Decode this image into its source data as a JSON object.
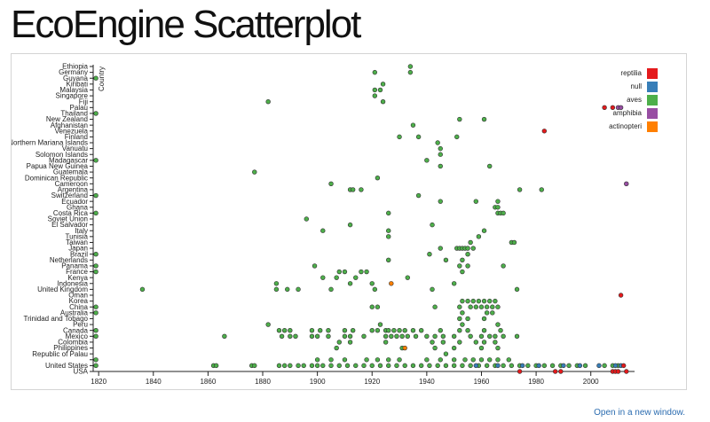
{
  "page": {
    "title": "EcoEngine Scatterplot",
    "open_link": "Open in a new window."
  },
  "chart_data": {
    "type": "scatter",
    "title": "",
    "xlabel": "",
    "ylabel": "Country",
    "xlim": [
      1818,
      2016
    ],
    "xticks": [
      1820,
      1840,
      1860,
      1880,
      1900,
      1920,
      1940,
      1960,
      1980,
      2000
    ],
    "categories": [
      "Ethiopia",
      "Germany",
      "Guyana",
      "Kiribati",
      "Malaysia",
      "Singapore",
      "Fiji",
      "Palau",
      "Thailand",
      "New Zealand",
      "Afghanistan",
      "Venezuela",
      "Finland",
      "Northern Mariana Islands",
      "Vanuatu",
      "Solomon Islands",
      "Madagascar",
      "Papua New Guinea",
      "Guatemala",
      "Dominican Republic",
      "Cameroon",
      "Argentina",
      "Switzerland",
      "Ecuador",
      "Ghana",
      "Costa Rica",
      "Soviet Union",
      "El Salvador",
      "Italy",
      "Tunisia",
      "Taiwan",
      "Japan",
      "Brazil",
      "Netherlands",
      "Panama",
      "France",
      "Kenya",
      "Indonesia",
      "United Kingdom",
      "Oman",
      "Korea",
      "China",
      "Australia",
      "Trinidad and Tobago",
      "Peru",
      "Canada",
      "Mexico",
      "Colombia",
      "Philippines",
      "Republic of Palau",
      "",
      "United States",
      "USA"
    ],
    "legend_position": "top-right",
    "grid": false,
    "series": [
      {
        "name": "reptilia",
        "color": "#e41a1c"
      },
      {
        "name": "null",
        "color": "#377eb8"
      },
      {
        "name": "aves",
        "color": "#4daf4a"
      },
      {
        "name": "amphibia",
        "color": "#984ea3"
      },
      {
        "name": "actinopteri",
        "color": "#ff7f00"
      }
    ],
    "points": [
      {
        "country": "Ethiopia",
        "series": "aves",
        "x": [
          1934
        ]
      },
      {
        "country": "Germany",
        "series": "aves",
        "x": [
          1921,
          1934
        ]
      },
      {
        "country": "Guyana",
        "series": "aves",
        "x": [
          1819
        ]
      },
      {
        "country": "Kiribati",
        "series": "aves",
        "x": [
          1924
        ]
      },
      {
        "country": "Malaysia",
        "series": "aves",
        "x": [
          1921,
          1923
        ]
      },
      {
        "country": "Singapore",
        "series": "aves",
        "x": [
          1921
        ]
      },
      {
        "country": "Fiji",
        "series": "aves",
        "x": [
          1882,
          1924
        ]
      },
      {
        "country": "Palau",
        "series": "reptilia",
        "x": [
          2005,
          2008
        ]
      },
      {
        "country": "Palau",
        "series": "amphibia",
        "x": [
          2010,
          2011
        ]
      },
      {
        "country": "Thailand",
        "series": "aves",
        "x": [
          1819
        ]
      },
      {
        "country": "New Zealand",
        "series": "aves",
        "x": [
          1952,
          1961
        ]
      },
      {
        "country": "Afghanistan",
        "series": "aves",
        "x": [
          1935
        ]
      },
      {
        "country": "Venezuela",
        "series": "reptilia",
        "x": [
          1983
        ]
      },
      {
        "country": "Finland",
        "series": "aves",
        "x": [
          1930,
          1937,
          1951
        ]
      },
      {
        "country": "Northern Mariana Islands",
        "series": "aves",
        "x": [
          1944
        ]
      },
      {
        "country": "Vanuatu",
        "series": "aves",
        "x": [
          1945
        ]
      },
      {
        "country": "Solomon Islands",
        "series": "aves",
        "x": [
          1945
        ]
      },
      {
        "country": "Madagascar",
        "series": "aves",
        "x": [
          1819,
          1940
        ]
      },
      {
        "country": "Papua New Guinea",
        "series": "aves",
        "x": [
          1945,
          1963
        ]
      },
      {
        "country": "Guatemala",
        "series": "aves",
        "x": [
          1877
        ]
      },
      {
        "country": "Dominican Republic",
        "series": "aves",
        "x": [
          1922
        ]
      },
      {
        "country": "Cameroon",
        "series": "aves",
        "x": [
          1905
        ]
      },
      {
        "country": "Cameroon",
        "series": "amphibia",
        "x": [
          2013
        ]
      },
      {
        "country": "Argentina",
        "series": "aves",
        "x": [
          1912,
          1913,
          1916,
          1974,
          1982
        ]
      },
      {
        "country": "Switzerland",
        "series": "aves",
        "x": [
          1819,
          1937
        ]
      },
      {
        "country": "Ecuador",
        "series": "aves",
        "x": [
          1945,
          1958,
          1966
        ]
      },
      {
        "country": "Ghana",
        "series": "aves",
        "x": [
          1965,
          1966
        ]
      },
      {
        "country": "Costa Rica",
        "series": "aves",
        "x": [
          1819,
          1926,
          1966,
          1967,
          1968
        ]
      },
      {
        "country": "Soviet Union",
        "series": "aves",
        "x": [
          1896
        ]
      },
      {
        "country": "El Salvador",
        "series": "aves",
        "x": [
          1912,
          1942
        ]
      },
      {
        "country": "Italy",
        "series": "aves",
        "x": [
          1902,
          1926,
          1961
        ]
      },
      {
        "country": "Tunisia",
        "series": "aves",
        "x": [
          1926,
          1959
        ]
      },
      {
        "country": "Taiwan",
        "series": "aves",
        "x": [
          1956,
          1971,
          1972
        ]
      },
      {
        "country": "Japan",
        "series": "aves",
        "x": [
          1945,
          1951,
          1952,
          1953,
          1954,
          1955,
          1957
        ]
      },
      {
        "country": "Brazil",
        "series": "aves",
        "x": [
          1819,
          1941,
          1955
        ]
      },
      {
        "country": "Netherlands",
        "series": "aves",
        "x": [
          1926,
          1947,
          1953
        ]
      },
      {
        "country": "Panama",
        "series": "aves",
        "x": [
          1819,
          1899,
          1952,
          1955,
          1968
        ]
      },
      {
        "country": "France",
        "series": "aves",
        "x": [
          1819,
          1908,
          1910,
          1916,
          1918,
          1953
        ]
      },
      {
        "country": "Kenya",
        "series": "aves",
        "x": [
          1902,
          1907,
          1914,
          1933
        ]
      },
      {
        "country": "Indonesia",
        "series": "aves",
        "x": [
          1885,
          1912,
          1920,
          1950
        ]
      },
      {
        "country": "Indonesia",
        "series": "actinopteri",
        "x": [
          1927
        ]
      },
      {
        "country": "United Kingdom",
        "series": "aves",
        "x": [
          1836,
          1885,
          1889,
          1893,
          1905,
          1921,
          1942,
          1973
        ]
      },
      {
        "country": "Oman",
        "series": "reptilia",
        "x": [
          2011
        ]
      },
      {
        "country": "Korea",
        "series": "aves",
        "x": [
          1953,
          1955,
          1957,
          1959,
          1961,
          1963,
          1965
        ]
      },
      {
        "country": "China",
        "series": "aves",
        "x": [
          1819,
          1920,
          1922,
          1943,
          1952,
          1956,
          1958,
          1960,
          1962,
          1964,
          1966
        ]
      },
      {
        "country": "Australia",
        "series": "aves",
        "x": [
          1819,
          1953,
          1962,
          1964
        ]
      },
      {
        "country": "Trinidad and Tobago",
        "series": "aves",
        "x": [
          1952,
          1955,
          1961
        ]
      },
      {
        "country": "Peru",
        "series": "aves",
        "x": [
          1882,
          1923,
          1953,
          1966
        ]
      },
      {
        "country": "Canada",
        "series": "aves",
        "x": [
          1819,
          1886,
          1888,
          1890,
          1898,
          1901,
          1904,
          1910,
          1913,
          1920,
          1922,
          1925,
          1926,
          1928,
          1930,
          1932,
          1935,
          1938,
          1945,
          1952,
          1955,
          1961,
          1967
        ]
      },
      {
        "country": "Mexico",
        "series": "aves",
        "x": [
          1819,
          1866,
          1887,
          1890,
          1892,
          1898,
          1900,
          1904,
          1910,
          1912,
          1917,
          1925,
          1927,
          1929,
          1931,
          1933,
          1936,
          1940,
          1943,
          1946,
          1950,
          1956,
          1960,
          1963,
          1965,
          1968,
          1973
        ]
      },
      {
        "country": "Colombia",
        "series": "aves",
        "x": [
          1908,
          1912,
          1925,
          1942,
          1946,
          1952,
          1958,
          1961,
          1965
        ]
      },
      {
        "country": "Philippines",
        "series": "aves",
        "x": [
          1907,
          1931,
          1943,
          1950,
          1960,
          1966
        ]
      },
      {
        "country": "Philippines",
        "series": "actinopteri",
        "x": [
          1932
        ]
      },
      {
        "country": "Republic of Palau",
        "series": "aves",
        "x": [
          1947
        ]
      },
      {
        "country": "",
        "series": "aves",
        "x": [
          1819,
          1900,
          1905,
          1910,
          1918,
          1922,
          1926,
          1930,
          1940,
          1945,
          1950,
          1954,
          1957,
          1960,
          1963,
          1966,
          1970
        ]
      },
      {
        "country": "United States",
        "series": "aves",
        "x": [
          1819,
          1862,
          1863,
          1876,
          1877,
          1886,
          1888,
          1890,
          1893,
          1895,
          1898,
          1900,
          1902,
          1905,
          1908,
          1911,
          1914,
          1917,
          1920,
          1923,
          1926,
          1929,
          1932,
          1935,
          1938,
          1941,
          1944,
          1947,
          1950,
          1953,
          1956,
          1959,
          1962,
          1965,
          1968,
          1971,
          1974,
          1977,
          1980,
          1983,
          1986,
          1989,
          1992,
          1995,
          1998,
          2005,
          2008,
          2010
        ]
      },
      {
        "country": "United States",
        "series": "null",
        "x": [
          1958,
          1966,
          1975,
          1981,
          1990,
          1996,
          2003,
          2009,
          2011
        ]
      },
      {
        "country": "United States",
        "series": "reptilia",
        "x": [
          2012
        ]
      },
      {
        "country": "USA",
        "series": "reptilia",
        "x": [
          1974,
          1987,
          1989,
          2008,
          2009,
          2010,
          2013
        ]
      }
    ]
  }
}
